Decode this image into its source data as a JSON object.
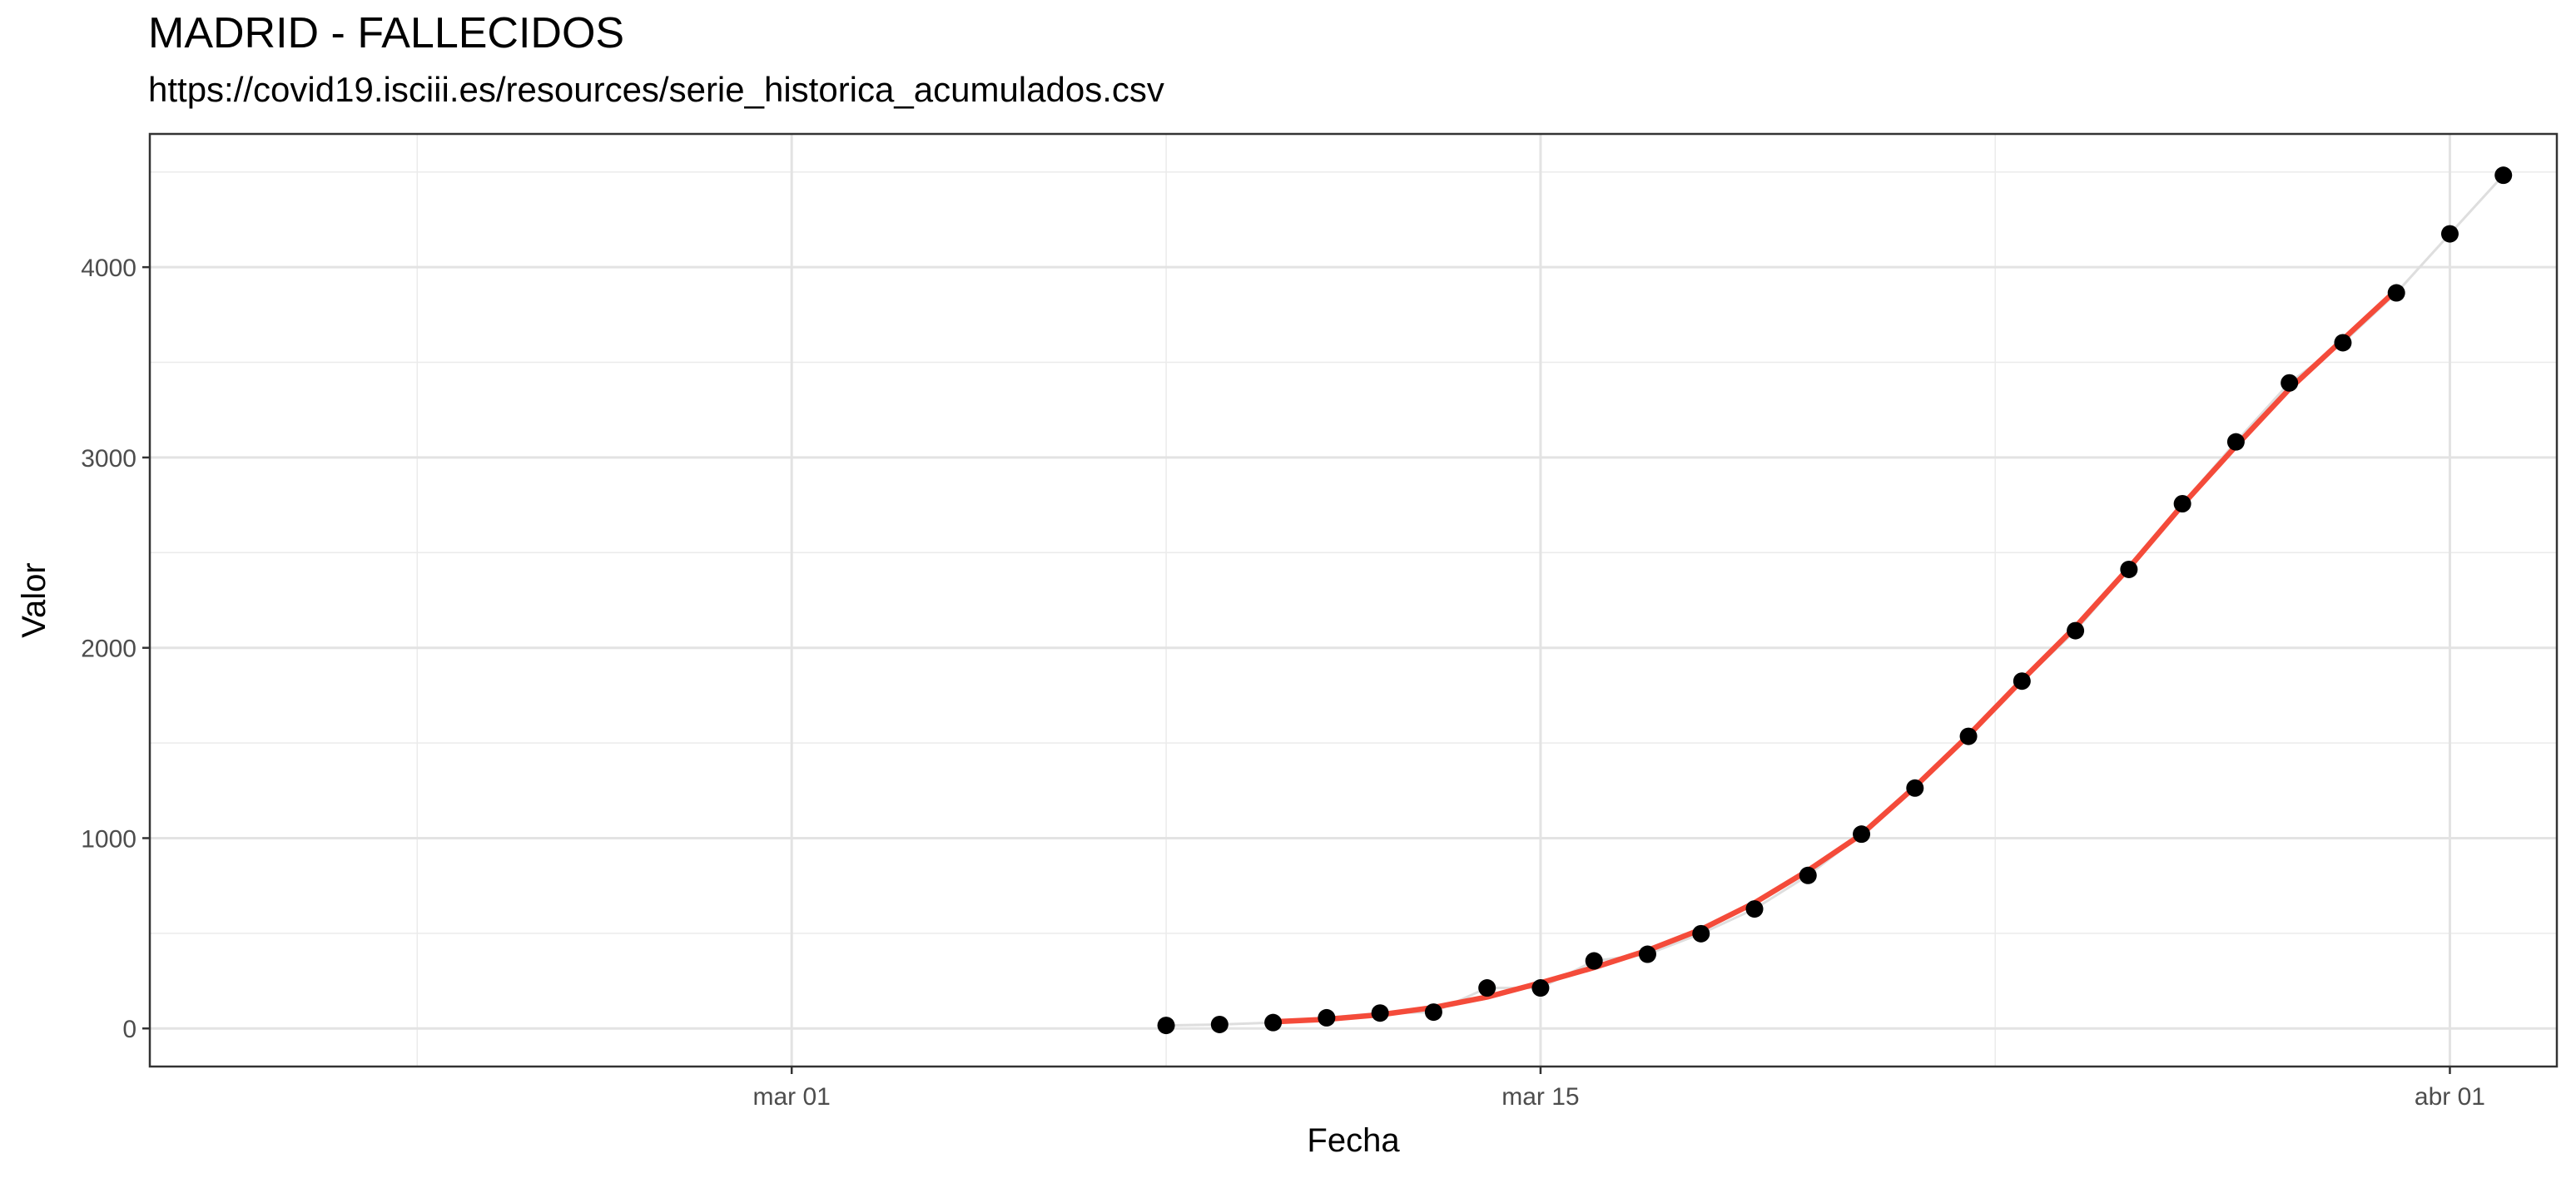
{
  "chart_data": {
    "type": "line",
    "title": "MADRID - FALLECIDOS",
    "subtitle": "https://covid19.isciii.es/resources/serie_historica_acumulados.csv",
    "xlabel": "Fecha",
    "ylabel": "Valor",
    "x_tick_labels": [
      "mar 01",
      "mar 15",
      "abr 01"
    ],
    "x_ticks": [
      "2020-03-01",
      "2020-03-15",
      "2020-04-01"
    ],
    "y_ticks": [
      0,
      1000,
      2000,
      3000,
      4000
    ],
    "y_tick_labels": [
      "0",
      "1000",
      "2000",
      "3000",
      "4000"
    ],
    "xlim": [
      "2020-02-18",
      "2020-04-03"
    ],
    "ylim": [
      -200,
      4700
    ],
    "grid": true,
    "series": [
      {
        "type": "scatter",
        "color": "#000000",
        "x": [
          "2020-03-08",
          "2020-03-09",
          "2020-03-10",
          "2020-03-11",
          "2020-03-12",
          "2020-03-13",
          "2020-03-14",
          "2020-03-15",
          "2020-03-16",
          "2020-03-17",
          "2020-03-18",
          "2020-03-19",
          "2020-03-20",
          "2020-03-21",
          "2020-03-22",
          "2020-03-23",
          "2020-03-24",
          "2020-03-25",
          "2020-03-26",
          "2020-03-27",
          "2020-03-28",
          "2020-03-29",
          "2020-03-30",
          "2020-03-31",
          "2020-04-01",
          "2020-04-02"
        ],
        "y": [
          16,
          21,
          31,
          56,
          81,
          86,
          213,
          213,
          355,
          390,
          498,
          628,
          804,
          1021,
          1263,
          1535,
          1825,
          2090,
          2412,
          2757,
          3082,
          3392,
          3603,
          3865,
          4175,
          4483
        ]
      },
      {
        "type": "line",
        "color": "#f44b3a",
        "x": [
          "2020-03-10",
          "2020-03-11",
          "2020-03-12",
          "2020-03-13",
          "2020-03-14",
          "2020-03-15",
          "2020-03-16",
          "2020-03-17",
          "2020-03-18",
          "2020-03-19",
          "2020-03-20",
          "2020-03-21",
          "2020-03-22",
          "2020-03-23",
          "2020-03-24",
          "2020-03-25",
          "2020-03-26",
          "2020-03-27",
          "2020-03-28",
          "2020-03-29",
          "2020-03-30",
          "2020-03-31"
        ],
        "y": [
          35,
          48,
          72,
          110,
          165,
          240,
          320,
          410,
          520,
          660,
          830,
          1020,
          1270,
          1540,
          1830,
          2110,
          2420,
          2750,
          3060,
          3360,
          3620,
          3880
        ]
      }
    ]
  }
}
